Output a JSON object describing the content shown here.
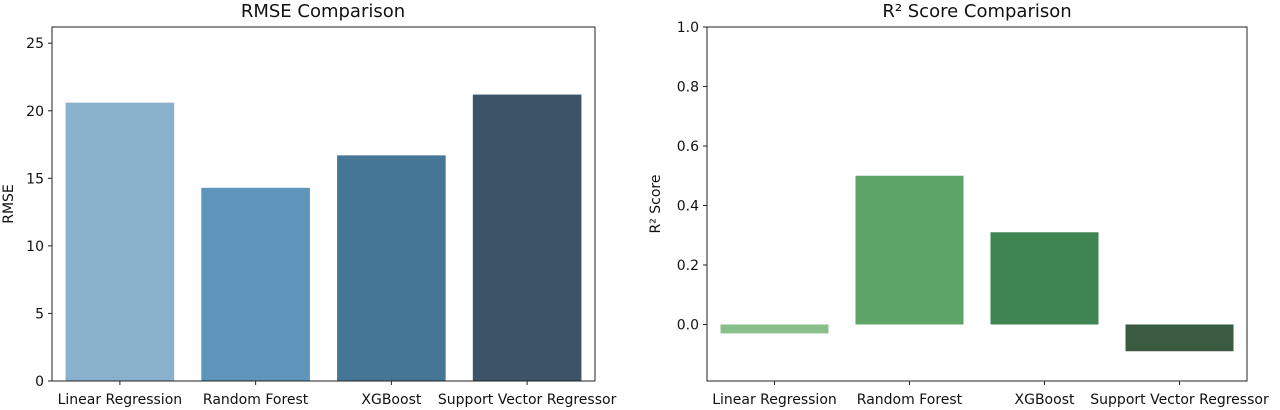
{
  "chart_data": [
    {
      "type": "bar",
      "title": "RMSE Comparison",
      "xlabel": "",
      "ylabel": "RMSE",
      "categories": [
        "Linear Regression",
        "Random Forest",
        "XGBoost",
        "Support Vector Regressor"
      ],
      "values": [
        20.6,
        14.3,
        16.7,
        21.2
      ],
      "ylim": [
        0,
        26.2
      ],
      "yticks": [
        0,
        5,
        10,
        15,
        20,
        25
      ],
      "ytick_labels": [
        "0",
        "5",
        "10",
        "15",
        "20",
        "25"
      ],
      "colors": [
        "#8ab1cc",
        "#5f95bb",
        "#457696",
        "#3d5468"
      ],
      "grid": false
    },
    {
      "type": "bar",
      "title": "R² Score Comparison",
      "xlabel": "",
      "ylabel": "R² Score",
      "categories": [
        "Linear Regression",
        "Random Forest",
        "XGBoost",
        "Support Vector Regressor"
      ],
      "values": [
        -0.03,
        0.5,
        0.31,
        -0.09
      ],
      "ylim": [
        -0.19,
        1.0
      ],
      "yticks": [
        0.0,
        0.2,
        0.4,
        0.6,
        0.8,
        1.0
      ],
      "ytick_labels": [
        "0.0",
        "0.2",
        "0.4",
        "0.6",
        "0.8",
        "1.0"
      ],
      "colors": [
        "#88bf8a",
        "#5ca468",
        "#3f8552",
        "#3a5b40"
      ],
      "grid": false
    }
  ]
}
